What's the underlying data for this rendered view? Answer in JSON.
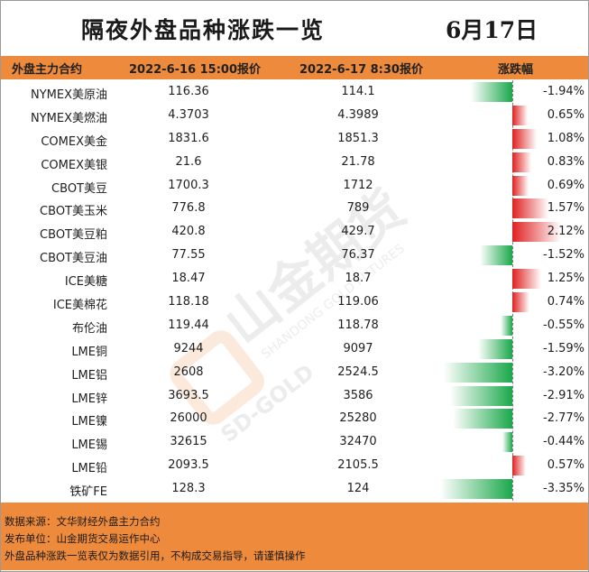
{
  "title": "隔夜外盘品种涨跌一览",
  "date": "6月17日",
  "header": {
    "col_name": "外盘主力合约",
    "col_p1": "2022-6-16 15:00报价",
    "col_p2": "2022-6-17 8:30报价",
    "col_chg": "涨跌幅"
  },
  "colors": {
    "header": "#ee8a3c",
    "up": "#e02020",
    "down": "#1aa84a"
  },
  "max_abs_change": 3.35,
  "rows": [
    {
      "name": "NYMEX美原油",
      "p1": "116.36",
      "p2": "114.1",
      "chg": -1.94,
      "chg_text": "-1.94%"
    },
    {
      "name": "NYMEX美燃油",
      "p1": "4.3703",
      "p2": "4.3989",
      "chg": 0.65,
      "chg_text": "0.65%"
    },
    {
      "name": "COMEX美金",
      "p1": "1831.6",
      "p2": "1851.3",
      "chg": 1.08,
      "chg_text": "1.08%"
    },
    {
      "name": "COMEX美银",
      "p1": "21.6",
      "p2": "21.78",
      "chg": 0.83,
      "chg_text": "0.83%"
    },
    {
      "name": "CBOT美豆",
      "p1": "1700.3",
      "p2": "1712",
      "chg": 0.69,
      "chg_text": "0.69%"
    },
    {
      "name": "CBOT美玉米",
      "p1": "776.8",
      "p2": "789",
      "chg": 1.57,
      "chg_text": "1.57%"
    },
    {
      "name": "CBOT美豆粕",
      "p1": "420.8",
      "p2": "429.7",
      "chg": 2.12,
      "chg_text": "2.12%"
    },
    {
      "name": "CBOT美豆油",
      "p1": "77.55",
      "p2": "76.37",
      "chg": -1.52,
      "chg_text": "-1.52%"
    },
    {
      "name": "ICE美糖",
      "p1": "18.47",
      "p2": "18.7",
      "chg": 1.25,
      "chg_text": "1.25%"
    },
    {
      "name": "ICE美棉花",
      "p1": "118.18",
      "p2": "119.06",
      "chg": 0.74,
      "chg_text": "0.74%"
    },
    {
      "name": "布伦油",
      "p1": "119.44",
      "p2": "118.78",
      "chg": -0.55,
      "chg_text": "-0.55%"
    },
    {
      "name": "LME铜",
      "p1": "9244",
      "p2": "9097",
      "chg": -1.59,
      "chg_text": "-1.59%"
    },
    {
      "name": "LME铝",
      "p1": "2608",
      "p2": "2524.5",
      "chg": -3.2,
      "chg_text": "-3.20%"
    },
    {
      "name": "LME锌",
      "p1": "3693.5",
      "p2": "3586",
      "chg": -2.91,
      "chg_text": "-2.91%"
    },
    {
      "name": "LME镍",
      "p1": "26000",
      "p2": "25280",
      "chg": -2.77,
      "chg_text": "-2.77%"
    },
    {
      "name": "LME锡",
      "p1": "32615",
      "p2": "32470",
      "chg": -0.44,
      "chg_text": "-0.44%"
    },
    {
      "name": "LME铅",
      "p1": "2093.5",
      "p2": "2105.5",
      "chg": 0.57,
      "chg_text": "0.57%"
    },
    {
      "name": "铁矿FE",
      "p1": "128.3",
      "p2": "124",
      "chg": -3.35,
      "chg_text": "-3.35%"
    }
  ],
  "footer": {
    "line1": "数据来源：文华财经外盘主力合约",
    "line2": "发布单位：山金期货交易运作中心",
    "line3": "外盘品种涨跌一览表仅为数据引用，不构成交易指导，请谨慎操作"
  },
  "watermark": {
    "text_cn": "山金期货",
    "text_en": "SHANDONG GOLD FUTURES",
    "text_logo": "SD-GOLD"
  }
}
